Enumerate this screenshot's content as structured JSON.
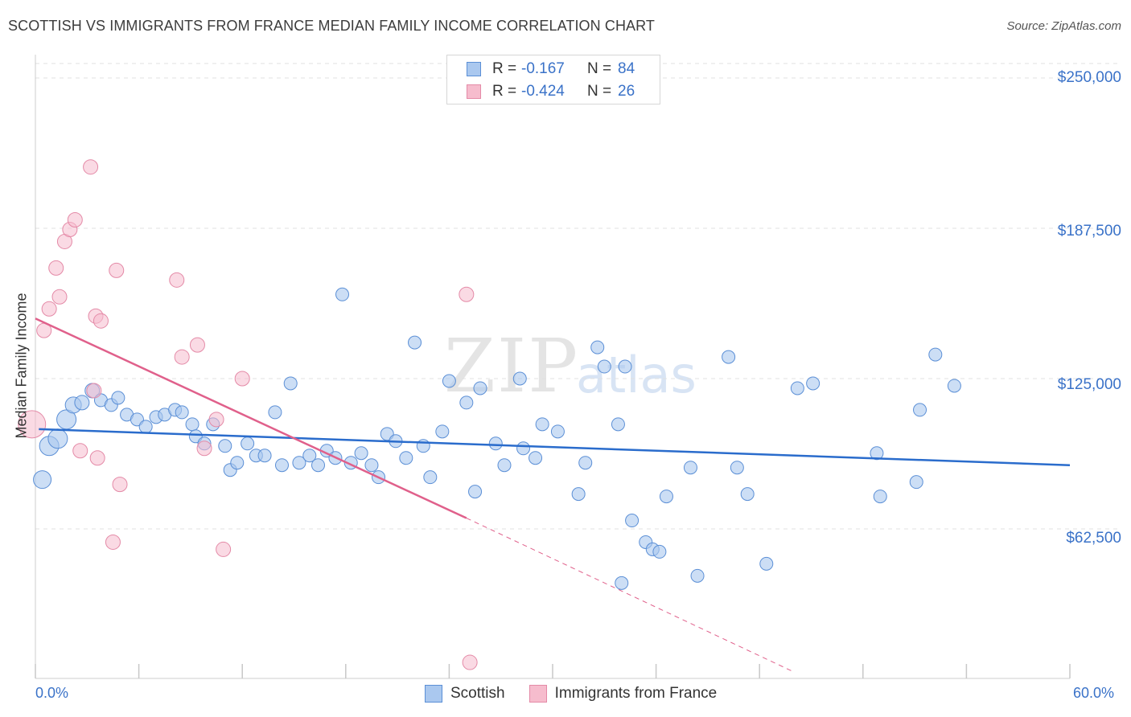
{
  "title": "SCOTTISH VS IMMIGRANTS FROM FRANCE MEDIAN FAMILY INCOME CORRELATION CHART",
  "source": "Source: ZipAtlas.com",
  "watermark": {
    "zip": "ZIP",
    "atlas": "atlas"
  },
  "legend": {
    "rows": [
      {
        "r_label": "R =",
        "r_value": "-0.167",
        "n_label": "N =",
        "n_value": "84"
      },
      {
        "r_label": "R =",
        "r_value": "-0.424",
        "n_label": "N =",
        "n_value": "26"
      }
    ]
  },
  "colors": {
    "blue_fill": "#aac8ef",
    "blue_stroke": "#5b8fd6",
    "blue_line": "#2a6ccc",
    "pink_fill": "#f6bccd",
    "pink_stroke": "#e48aa7",
    "pink_line": "#e0608b",
    "axis_text": "#3a72c8",
    "grid": "#e0e0e0"
  },
  "chart_data": {
    "type": "scatter",
    "title": "SCOTTISH VS IMMIGRANTS FROM FRANCE MEDIAN FAMILY INCOME CORRELATION CHART",
    "xlabel": "",
    "ylabel": "Median Family Income",
    "xlim": [
      0,
      60
    ],
    "ylim": [
      0,
      250000
    ],
    "x_tick_labels": [
      "0.0%",
      "60.0%"
    ],
    "y_ticks": [
      62500,
      125000,
      187500,
      250000
    ],
    "y_tick_labels": [
      "$62,500",
      "$125,000",
      "$187,500",
      "$250,000"
    ],
    "series": [
      {
        "name": "Scottish",
        "R": -0.167,
        "N": 84,
        "trend": {
          "x0": 0.2,
          "y0": 104000,
          "x1": 60,
          "y1": 89000
        },
        "points": [
          [
            0.4,
            83000,
            11
          ],
          [
            0.8,
            97000,
            12
          ],
          [
            1.3,
            100000,
            12
          ],
          [
            1.8,
            108000,
            12
          ],
          [
            2.2,
            114000,
            10
          ],
          [
            2.7,
            115000,
            9
          ],
          [
            3.3,
            120000,
            9
          ],
          [
            3.8,
            116000,
            8
          ],
          [
            4.4,
            114000,
            8
          ],
          [
            4.8,
            117000,
            8
          ],
          [
            5.3,
            110000,
            8
          ],
          [
            5.9,
            108000,
            8
          ],
          [
            6.4,
            105000,
            8
          ],
          [
            7.0,
            109000,
            8
          ],
          [
            7.5,
            110000,
            8
          ],
          [
            8.1,
            112000,
            8
          ],
          [
            8.5,
            111000,
            8
          ],
          [
            9.1,
            106000,
            8
          ],
          [
            9.3,
            101000,
            8
          ],
          [
            9.8,
            98000,
            8
          ],
          [
            10.3,
            106000,
            8
          ],
          [
            11.0,
            97000,
            8
          ],
          [
            11.3,
            87000,
            8
          ],
          [
            11.7,
            90000,
            8
          ],
          [
            12.3,
            98000,
            8
          ],
          [
            12.8,
            93000,
            8
          ],
          [
            13.3,
            93000,
            8
          ],
          [
            13.9,
            111000,
            8
          ],
          [
            14.3,
            89000,
            8
          ],
          [
            14.8,
            123000,
            8
          ],
          [
            15.3,
            90000,
            8
          ],
          [
            15.9,
            93000,
            8
          ],
          [
            16.4,
            89000,
            8
          ],
          [
            16.9,
            95000,
            8
          ],
          [
            17.4,
            92000,
            8
          ],
          [
            17.8,
            160000,
            8
          ],
          [
            18.3,
            90000,
            8
          ],
          [
            18.9,
            94000,
            8
          ],
          [
            19.5,
            89000,
            8
          ],
          [
            19.9,
            84000,
            8
          ],
          [
            20.4,
            102000,
            8
          ],
          [
            20.9,
            99000,
            8
          ],
          [
            21.5,
            92000,
            8
          ],
          [
            22.0,
            140000,
            8
          ],
          [
            22.5,
            97000,
            8
          ],
          [
            22.9,
            84000,
            8
          ],
          [
            23.6,
            103000,
            8
          ],
          [
            24.0,
            124000,
            8
          ],
          [
            25.0,
            115000,
            8
          ],
          [
            25.5,
            78000,
            8
          ],
          [
            25.8,
            121000,
            8
          ],
          [
            26.7,
            98000,
            8
          ],
          [
            27.2,
            89000,
            8
          ],
          [
            28.1,
            125000,
            8
          ],
          [
            28.3,
            96000,
            8
          ],
          [
            29.0,
            92000,
            8
          ],
          [
            29.4,
            106000,
            8
          ],
          [
            30.3,
            103000,
            8
          ],
          [
            31.5,
            77000,
            8
          ],
          [
            31.9,
            90000,
            8
          ],
          [
            32.6,
            138000,
            8
          ],
          [
            33.0,
            130000,
            8
          ],
          [
            33.8,
            106000,
            8
          ],
          [
            34.2,
            130000,
            8
          ],
          [
            34.6,
            66000,
            8
          ],
          [
            34.0,
            40000,
            8
          ],
          [
            35.4,
            57000,
            8
          ],
          [
            35.8,
            54000,
            8
          ],
          [
            36.2,
            53000,
            8
          ],
          [
            36.6,
            76000,
            8
          ],
          [
            38.0,
            88000,
            8
          ],
          [
            38.4,
            43000,
            8
          ],
          [
            40.2,
            134000,
            8
          ],
          [
            40.7,
            88000,
            8
          ],
          [
            41.3,
            77000,
            8
          ],
          [
            42.4,
            48000,
            8
          ],
          [
            44.2,
            121000,
            8
          ],
          [
            45.1,
            123000,
            8
          ],
          [
            48.8,
            94000,
            8
          ],
          [
            49.0,
            76000,
            8
          ],
          [
            51.3,
            112000,
            8
          ],
          [
            51.1,
            82000,
            8
          ],
          [
            52.2,
            135000,
            8
          ],
          [
            53.3,
            122000,
            8
          ]
        ]
      },
      {
        "name": "Immigrants from France",
        "R": -0.424,
        "N": 26,
        "trend": {
          "x0": 0.0,
          "y0": 150000,
          "x1": 25.0,
          "y1": 67000
        },
        "trend_dashed": {
          "x0": 25.0,
          "y0": 67000,
          "x1": 44.0,
          "y1": 3000
        },
        "points": [
          [
            -0.2,
            106000,
            17
          ],
          [
            0.5,
            145000,
            9
          ],
          [
            0.8,
            154000,
            9
          ],
          [
            1.4,
            159000,
            9
          ],
          [
            1.2,
            171000,
            9
          ],
          [
            1.7,
            182000,
            9
          ],
          [
            2.0,
            187000,
            9
          ],
          [
            2.3,
            191000,
            9
          ],
          [
            2.6,
            95000,
            9
          ],
          [
            3.2,
            213000,
            9
          ],
          [
            3.4,
            120000,
            9
          ],
          [
            3.6,
            92000,
            9
          ],
          [
            3.5,
            151000,
            9
          ],
          [
            3.8,
            149000,
            9
          ],
          [
            4.7,
            170000,
            9
          ],
          [
            4.9,
            81000,
            9
          ],
          [
            4.5,
            57000,
            9
          ],
          [
            8.5,
            134000,
            9
          ],
          [
            8.2,
            166000,
            9
          ],
          [
            9.4,
            139000,
            9
          ],
          [
            9.8,
            96000,
            9
          ],
          [
            10.5,
            108000,
            9
          ],
          [
            10.9,
            54000,
            9
          ],
          [
            12.0,
            125000,
            9
          ],
          [
            25.0,
            160000,
            9
          ],
          [
            25.2,
            7000,
            9
          ]
        ]
      }
    ]
  },
  "bottom_legend": [
    {
      "label": "Scottish"
    },
    {
      "label": "Immigrants from France"
    }
  ]
}
